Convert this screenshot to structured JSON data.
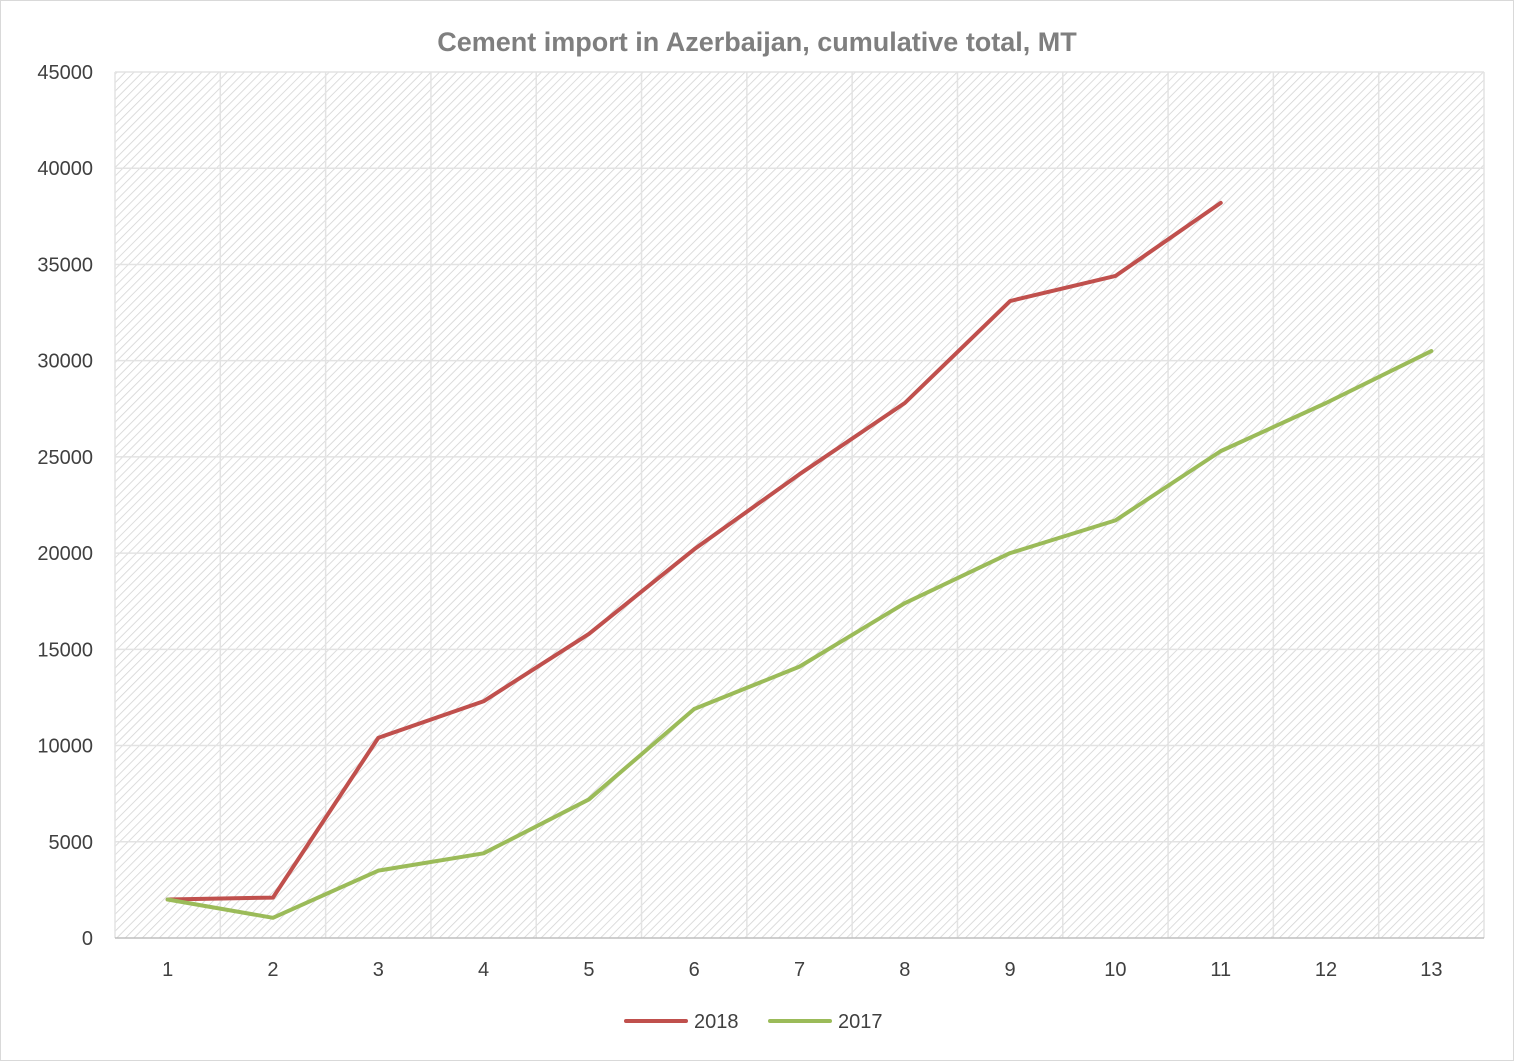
{
  "chart_data": {
    "type": "line",
    "title": "Cement import in Azerbaijan, cumulative total, MT",
    "xlabel": "",
    "ylabel": "",
    "x": [
      1,
      2,
      3,
      4,
      5,
      6,
      7,
      8,
      9,
      10,
      11,
      12,
      13
    ],
    "ylim": [
      0,
      45000
    ],
    "yticks": [
      0,
      5000,
      10000,
      15000,
      20000,
      25000,
      30000,
      35000,
      40000,
      45000
    ],
    "grid": true,
    "legend_position": "bottom",
    "series": [
      {
        "name": "2018",
        "color": "#c0504d",
        "values": [
          2000,
          2100,
          10400,
          12300,
          15800,
          20200,
          24100,
          27800,
          33100,
          34400,
          38200,
          null,
          null
        ]
      },
      {
        "name": "2017",
        "color": "#9bbb59",
        "values": [
          2000,
          1050,
          3500,
          4400,
          7200,
          11900,
          14100,
          17400,
          20000,
          21700,
          25300,
          27800,
          30500
        ]
      }
    ]
  }
}
